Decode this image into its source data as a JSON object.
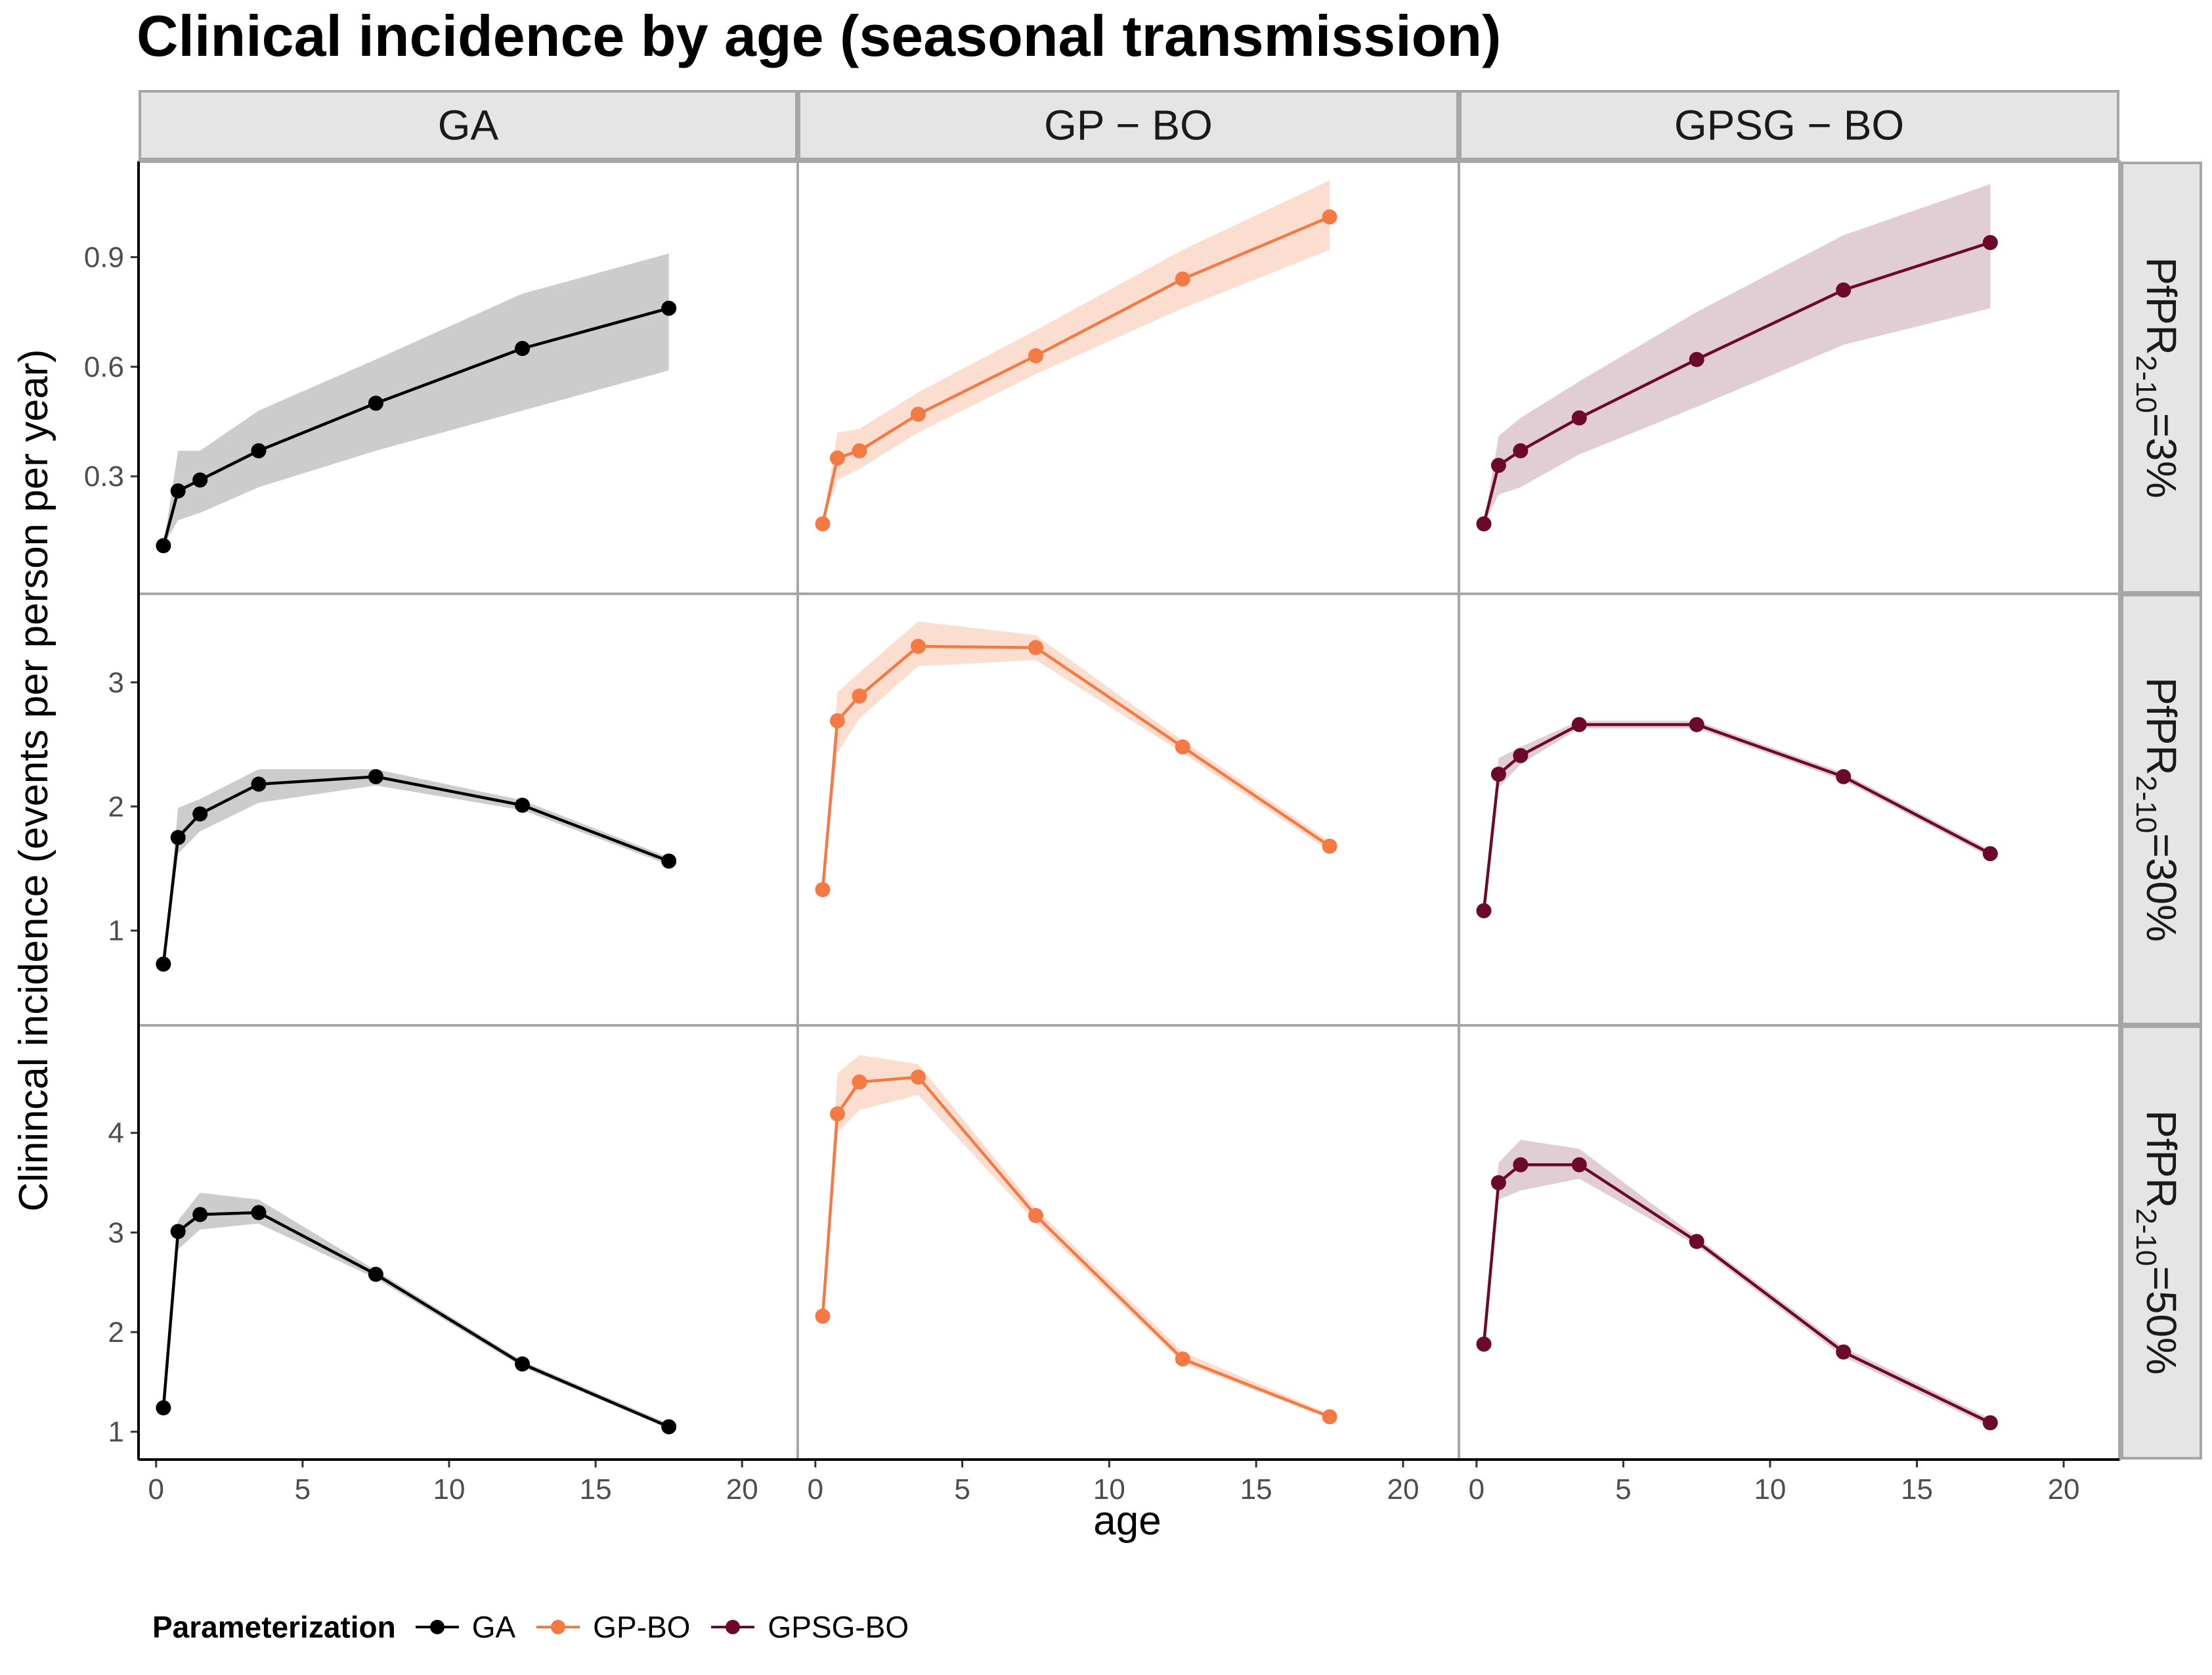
{
  "title": "Clinical incidence by age (seasonal transmission)",
  "colors": {
    "GA": "#000000",
    "GP-BO": "#f47a45",
    "GPSG-BO": "#6b0a2b"
  },
  "chart_data": {
    "type": "line",
    "facet_cols": [
      "GA",
      "GP − BO",
      "GPSG − BO"
    ],
    "facet_rows": [
      {
        "prefix": "PfPR",
        "sub": "2-10",
        "suffix": "=3%"
      },
      {
        "prefix": "PfPR",
        "sub": "2-10",
        "suffix": "=30%"
      },
      {
        "prefix": "PfPR",
        "sub": "2-10",
        "suffix": "=50%"
      }
    ],
    "xlabel": "age",
    "ylabel": "Clinincal incidence (events per person per year)",
    "xlim": [
      -0.6,
      21.9
    ],
    "xticks": [
      0,
      5,
      10,
      15,
      20
    ],
    "x": [
      0.25,
      0.75,
      1.5,
      3.5,
      7.5,
      12.5,
      17.5
    ],
    "rows": [
      {
        "ylim": [
          0.0,
          1.14
        ],
        "yticks": [
          0.3,
          0.6,
          0.9
        ],
        "yticklabels": [
          "0.3",
          "0.6",
          "0.9"
        ],
        "panels": [
          {
            "series": "GA",
            "values": [
              0.11,
              0.26,
              0.29,
              0.37,
              0.5,
              0.65,
              0.76
            ],
            "lower": [
              0.11,
              0.18,
              0.2,
              0.27,
              0.37,
              0.48,
              0.59
            ],
            "upper": [
              0.11,
              0.37,
              0.37,
              0.48,
              0.62,
              0.8,
              0.91
            ]
          },
          {
            "series": "GP-BO",
            "values": [
              0.17,
              0.35,
              0.37,
              0.47,
              0.63,
              0.84,
              1.01
            ],
            "lower": [
              0.17,
              0.29,
              0.32,
              0.42,
              0.58,
              0.76,
              0.92
            ],
            "upper": [
              0.17,
              0.42,
              0.43,
              0.53,
              0.7,
              0.92,
              1.11
            ]
          },
          {
            "series": "GPSG-BO",
            "values": [
              0.17,
              0.33,
              0.37,
              0.46,
              0.62,
              0.81,
              0.94
            ],
            "lower": [
              0.17,
              0.25,
              0.27,
              0.36,
              0.49,
              0.66,
              0.76
            ],
            "upper": [
              0.17,
              0.41,
              0.46,
              0.56,
              0.75,
              0.96,
              1.1
            ]
          }
        ]
      },
      {
        "ylim": [
          0.3,
          3.65
        ],
        "yticks": [
          1,
          2,
          3
        ],
        "yticklabels": [
          "1",
          "2",
          "3"
        ],
        "panels": [
          {
            "series": "GA",
            "values": [
              0.73,
              1.75,
              1.94,
              2.18,
              2.24,
              2.01,
              1.56
            ],
            "lower": [
              0.73,
              1.62,
              1.8,
              2.03,
              2.17,
              1.97,
              1.53
            ],
            "upper": [
              0.73,
              1.99,
              2.06,
              2.3,
              2.3,
              2.05,
              1.59
            ]
          },
          {
            "series": "GP-BO",
            "values": [
              1.33,
              2.69,
              2.89,
              3.29,
              3.28,
              2.48,
              1.68
            ],
            "lower": [
              1.33,
              2.43,
              2.71,
              3.13,
              3.18,
              2.43,
              1.64
            ],
            "upper": [
              1.33,
              2.92,
              3.08,
              3.49,
              3.38,
              2.53,
              1.72
            ]
          },
          {
            "series": "GPSG-BO",
            "values": [
              1.16,
              2.26,
              2.41,
              2.66,
              2.66,
              2.24,
              1.62
            ],
            "lower": [
              1.16,
              2.15,
              2.34,
              2.63,
              2.63,
              2.21,
              1.59
            ],
            "upper": [
              1.16,
              2.39,
              2.48,
              2.69,
              2.69,
              2.27,
              1.65
            ]
          }
        ]
      },
      {
        "ylim": [
          0.8,
          5.0
        ],
        "yticks": [
          1,
          2,
          3,
          4
        ],
        "yticklabels": [
          "1",
          "2",
          "3",
          "4"
        ],
        "panels": [
          {
            "series": "GA",
            "values": [
              1.24,
              3.01,
              3.18,
              3.2,
              2.58,
              1.68,
              1.05
            ],
            "lower": [
              1.24,
              2.83,
              3.03,
              3.09,
              2.54,
              1.65,
              1.03
            ],
            "upper": [
              1.24,
              3.12,
              3.4,
              3.33,
              2.62,
              1.71,
              1.08
            ]
          },
          {
            "series": "GP-BO",
            "values": [
              2.16,
              4.19,
              4.51,
              4.56,
              3.17,
              1.73,
              1.15
            ],
            "lower": [
              2.16,
              4.0,
              4.23,
              4.38,
              3.1,
              1.69,
              1.13
            ],
            "upper": [
              2.16,
              4.6,
              4.78,
              4.69,
              3.24,
              1.8,
              1.18
            ]
          },
          {
            "series": "GPSG-BO",
            "values": [
              1.88,
              3.5,
              3.68,
              3.68,
              2.91,
              1.8,
              1.09
            ],
            "lower": [
              1.88,
              3.33,
              3.42,
              3.54,
              2.87,
              1.75,
              1.05
            ],
            "upper": [
              1.88,
              3.7,
              3.93,
              3.84,
              2.95,
              1.85,
              1.13
            ]
          }
        ]
      }
    ],
    "legend": {
      "title": "Parameterization",
      "position": "bottom",
      "entries": [
        "GA",
        "GP-BO",
        "GPSG-BO"
      ]
    }
  }
}
